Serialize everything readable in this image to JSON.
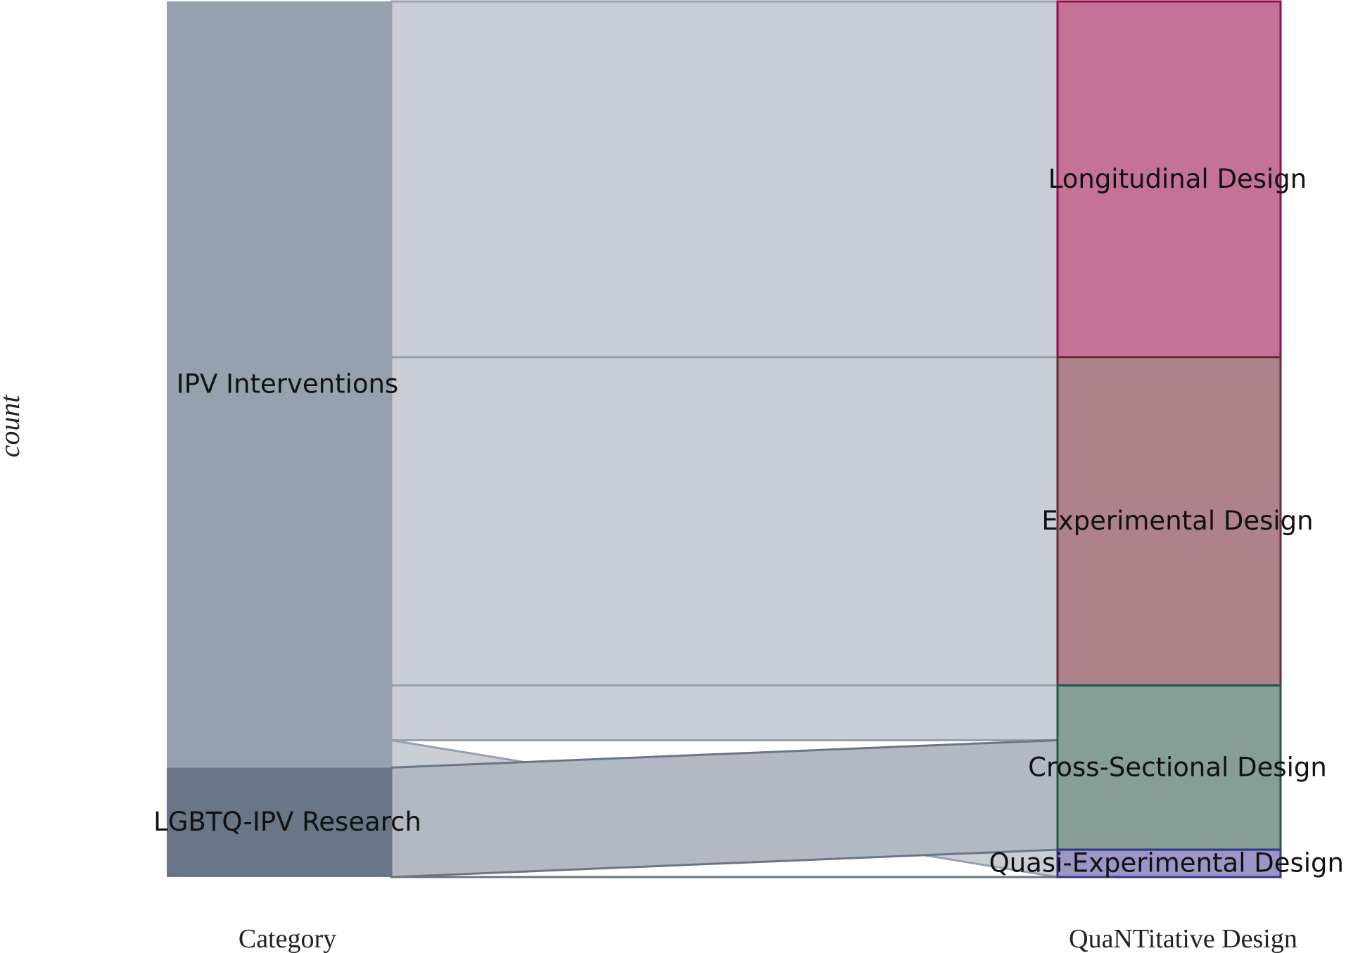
{
  "chart_data": {
    "type": "alluvial",
    "ylabel": "count",
    "axes": [
      "Category",
      "QuaNTitative Design"
    ],
    "left_nodes": [
      {
        "name": "IPV Interventions",
        "color": "#97a0af"
      },
      {
        "name": "LGBTQ-IPV Research",
        "color": "#687687"
      }
    ],
    "right_nodes": [
      {
        "name": "Longitudinal Design",
        "color": "#c47396",
        "stroke": "#8e0f4d"
      },
      {
        "name": "Experimental Design",
        "color": "#ae828b",
        "stroke": "#6b2a3c"
      },
      {
        "name": "Cross-Sectional Design",
        "color": "#869e96",
        "stroke": "#1e5a4c"
      },
      {
        "name": "Quasi-Experimental Design",
        "color": "#9a96c5",
        "stroke": "#34358a"
      }
    ],
    "flows": [
      {
        "source": "IPV Interventions",
        "target": "Longitudinal Design",
        "value": 13
      },
      {
        "source": "IPV Interventions",
        "target": "Experimental Design",
        "value": 12
      },
      {
        "source": "IPV Interventions",
        "target": "Cross-Sectional Design",
        "value": 2
      },
      {
        "source": "IPV Interventions",
        "target": "Quasi-Experimental Design",
        "value": 1
      },
      {
        "source": "LGBTQ-IPV Research",
        "target": "Cross-Sectional Design",
        "value": 4
      },
      {
        "source": "LGBTQ-IPV Research",
        "target": "Quasi-Experimental Design",
        "value": 0
      }
    ]
  }
}
